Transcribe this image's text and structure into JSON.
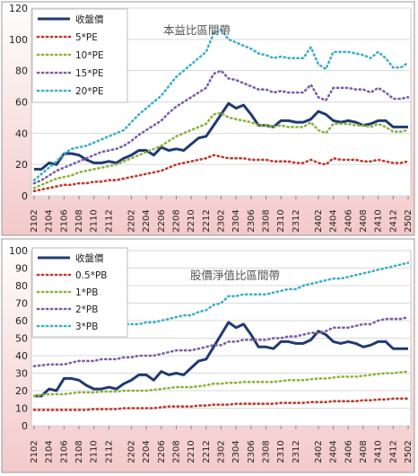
{
  "chart_data": [
    {
      "type": "line",
      "title": "本益比區間帶",
      "xlabel": "",
      "ylabel": "",
      "ylim": [
        0,
        120
      ],
      "yticks": [
        0,
        20,
        40,
        60,
        80,
        100,
        120
      ],
      "x_tick_labels": [
        "2102",
        "2104",
        "2106",
        "2108",
        "2110",
        "2112",
        "2202",
        "2204",
        "2206",
        "2208",
        "2210",
        "2212",
        "2302",
        "2304",
        "2306",
        "2308",
        "2310",
        "2312",
        "2402",
        "2404",
        "2406",
        "2408",
        "2410",
        "2412",
        "2502"
      ],
      "grid": true,
      "legend_position": "top-left",
      "background": "#f8dede",
      "series": [
        {
          "name": "收盤價",
          "color": "#1f3b73",
          "style": "solid",
          "values": [
            17,
            17,
            21,
            20,
            27,
            27,
            26,
            23,
            21,
            21,
            22,
            21,
            24,
            26,
            29,
            29,
            26,
            31,
            29,
            30,
            29,
            33,
            37,
            38,
            45,
            52,
            59,
            56,
            58,
            52,
            45,
            45,
            44,
            48,
            48,
            47,
            47,
            49,
            54,
            52,
            48,
            47,
            48,
            47,
            45,
            46,
            48,
            48,
            44,
            44,
            44
          ]
        },
        {
          "name": "5*PE",
          "color": "#c0392b",
          "style": "dotted",
          "values": [
            3,
            4,
            5,
            6,
            7,
            7,
            8,
            8,
            9,
            9,
            10,
            10,
            11,
            12,
            13,
            14,
            15,
            16,
            18,
            20,
            21,
            22,
            23,
            24,
            26,
            25,
            24,
            24,
            24,
            23,
            23,
            23,
            22,
            22,
            22,
            21,
            21,
            23,
            21,
            20,
            24,
            23,
            23,
            23,
            22,
            22,
            23,
            22,
            21,
            21,
            22
          ]
        },
        {
          "name": "10*PE",
          "color": "#8db33a",
          "style": "dotted",
          "values": [
            5,
            7,
            9,
            11,
            12,
            13,
            15,
            16,
            17,
            18,
            19,
            20,
            22,
            24,
            26,
            28,
            30,
            32,
            35,
            38,
            40,
            42,
            44,
            46,
            52,
            53,
            50,
            49,
            48,
            47,
            45,
            45,
            44,
            45,
            44,
            44,
            44,
            47,
            42,
            40,
            46,
            46,
            46,
            45,
            45,
            44,
            46,
            44,
            41,
            41,
            42
          ]
        },
        {
          "name": "15*PE",
          "color": "#7b5ea7",
          "style": "dotted",
          "values": [
            8,
            10,
            13,
            16,
            18,
            20,
            22,
            24,
            26,
            28,
            29,
            30,
            32,
            35,
            39,
            42,
            45,
            48,
            53,
            57,
            60,
            63,
            66,
            69,
            78,
            80,
            75,
            74,
            72,
            70,
            68,
            68,
            66,
            67,
            66,
            66,
            66,
            71,
            63,
            61,
            69,
            69,
            69,
            68,
            68,
            66,
            69,
            66,
            62,
            62,
            63
          ]
        },
        {
          "name": "20*PE",
          "color": "#3cb0c9",
          "style": "dotted",
          "values": [
            10,
            14,
            18,
            22,
            27,
            30,
            31,
            32,
            34,
            36,
            38,
            40,
            42,
            47,
            52,
            56,
            60,
            64,
            70,
            76,
            80,
            84,
            88,
            92,
            104,
            106,
            100,
            98,
            96,
            94,
            91,
            90,
            88,
            89,
            88,
            88,
            88,
            95,
            84,
            81,
            92,
            92,
            92,
            91,
            90,
            88,
            92,
            88,
            82,
            82,
            85
          ]
        }
      ]
    },
    {
      "type": "line",
      "title": "股價淨值比區間帶",
      "xlabel": "",
      "ylabel": "",
      "ylim": [
        0,
        100
      ],
      "yticks": [
        0,
        10,
        20,
        30,
        40,
        50,
        60,
        70,
        80,
        90,
        100
      ],
      "x_tick_labels": [
        "2102",
        "2104",
        "2106",
        "2108",
        "2110",
        "2112",
        "2202",
        "2204",
        "2206",
        "2208",
        "2210",
        "2212",
        "2302",
        "2304",
        "2306",
        "2308",
        "2310",
        "2312",
        "2402",
        "2404",
        "2406",
        "2408",
        "2410",
        "2412",
        "2502"
      ],
      "grid": true,
      "legend_position": "top-left",
      "background": "#f8dede",
      "series": [
        {
          "name": "收盤價",
          "color": "#1f3b73",
          "style": "solid",
          "values": [
            17,
            17,
            21,
            20,
            27,
            27,
            26,
            23,
            21,
            21,
            22,
            21,
            24,
            26,
            29,
            29,
            26,
            31,
            29,
            30,
            29,
            33,
            37,
            38,
            45,
            52,
            59,
            56,
            58,
            52,
            45,
            45,
            44,
            48,
            48,
            47,
            47,
            49,
            54,
            52,
            48,
            47,
            48,
            47,
            45,
            46,
            48,
            48,
            44,
            44,
            44
          ]
        },
        {
          "name": "0.5*PB",
          "color": "#c0392b",
          "style": "dotted",
          "values": [
            9,
            9,
            9,
            9,
            9,
            9,
            9,
            9,
            9.5,
            9.5,
            9.5,
            9.5,
            10,
            10,
            10,
            10,
            10,
            10.5,
            11,
            11,
            11,
            11,
            11.5,
            11.5,
            12,
            12,
            12,
            12.5,
            12.5,
            12.5,
            12.5,
            12.5,
            12.5,
            13,
            13,
            13,
            13,
            13.5,
            13.5,
            13.5,
            14,
            14,
            14,
            14,
            14.5,
            14.5,
            15,
            15,
            15.5,
            15.5,
            15.5
          ]
        },
        {
          "name": "1*PB",
          "color": "#8db33a",
          "style": "dotted",
          "values": [
            17,
            17.5,
            18,
            18,
            18,
            18.5,
            19,
            19,
            19,
            19.5,
            19.5,
            19.5,
            20,
            20,
            20,
            20,
            20.5,
            21,
            21.5,
            22,
            22,
            22,
            22.5,
            23,
            24,
            24,
            24.5,
            24.5,
            25,
            25,
            25,
            25,
            25,
            25.5,
            26,
            26,
            26,
            26.5,
            27,
            27,
            27.5,
            28,
            28,
            28,
            28.5,
            29,
            29.5,
            30,
            30,
            30.5,
            31
          ]
        },
        {
          "name": "2*PB",
          "color": "#7b5ea7",
          "style": "dotted",
          "values": [
            34,
            34.5,
            35,
            35,
            35,
            36,
            37,
            37,
            37,
            38,
            38,
            38,
            39,
            39,
            40,
            40,
            40,
            41,
            42,
            43,
            43,
            43,
            44,
            45,
            46,
            46,
            48,
            48,
            49,
            49,
            49,
            49,
            50,
            50,
            51,
            51,
            52,
            53,
            53,
            54,
            56,
            56,
            56,
            57,
            58,
            58,
            60,
            61,
            61,
            61,
            62
          ]
        },
        {
          "name": "3*PB",
          "color": "#3cb0c9",
          "style": "dotted",
          "values": [
            52,
            52,
            52,
            53,
            54,
            54,
            55,
            55,
            56,
            56,
            57,
            57,
            58,
            58,
            58,
            59,
            59,
            60,
            61,
            62,
            63,
            63,
            65,
            66,
            69,
            70,
            74,
            74,
            75,
            75,
            75,
            75,
            76,
            77,
            78,
            78,
            80,
            81,
            82,
            83,
            84,
            84,
            85,
            86,
            87,
            88,
            89,
            90,
            91,
            92,
            93
          ]
        }
      ]
    }
  ]
}
